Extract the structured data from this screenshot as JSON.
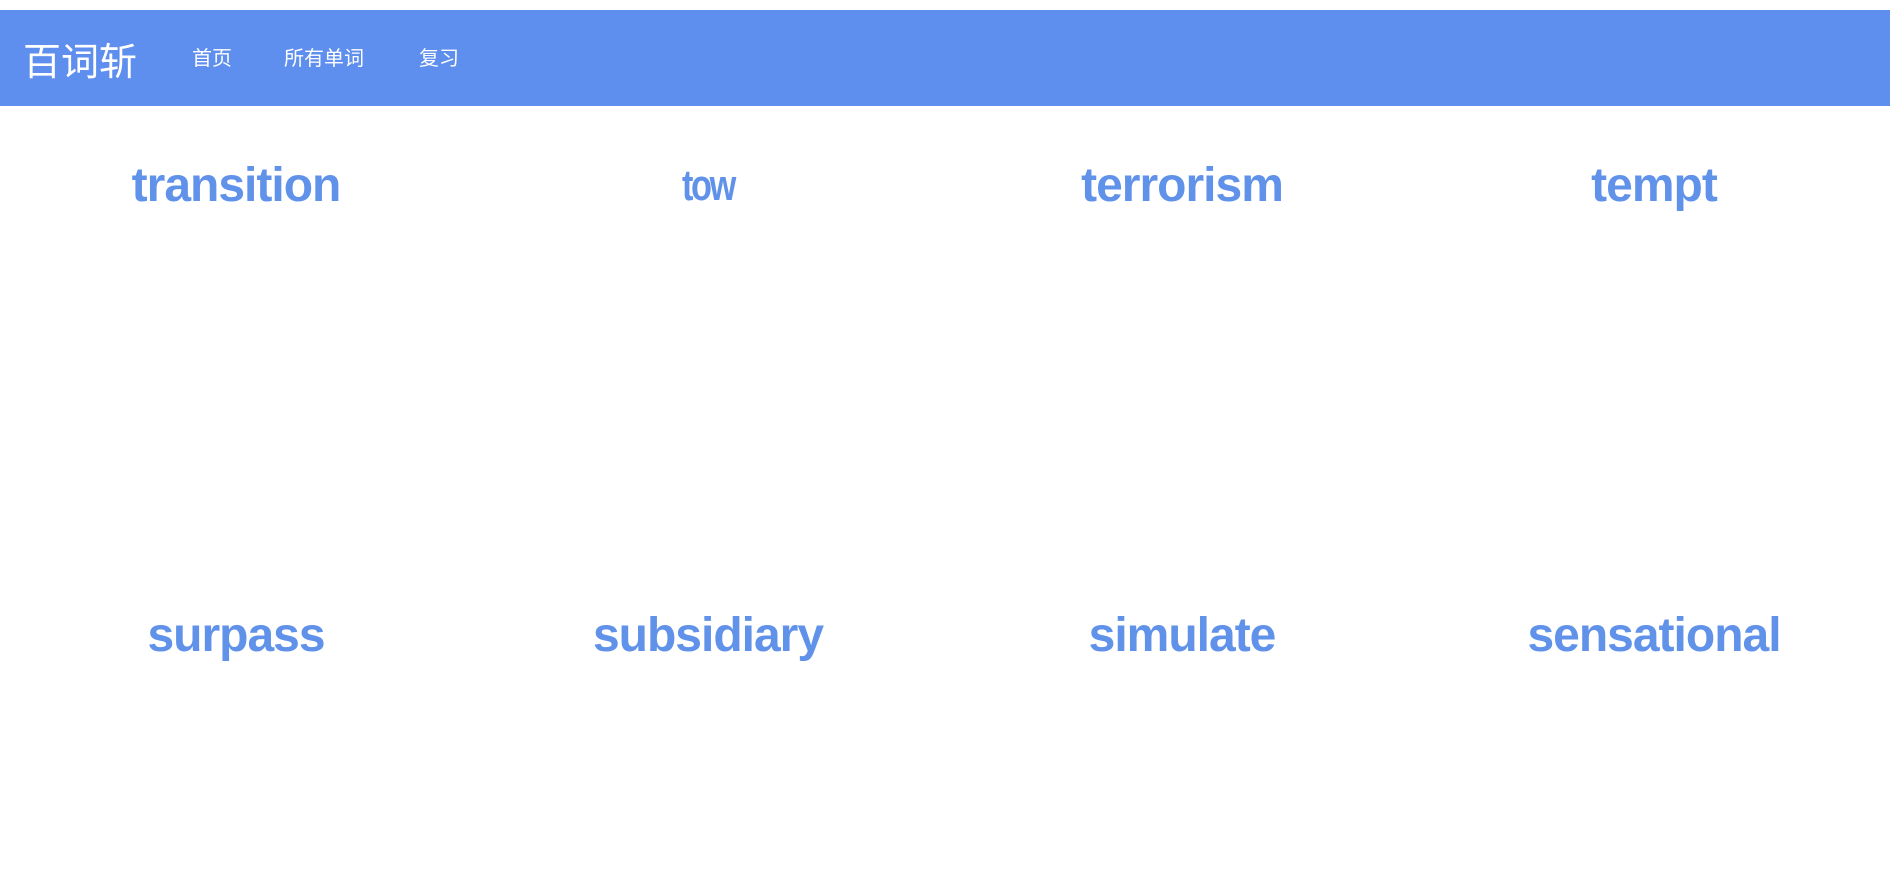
{
  "header": {
    "brand": "百词斩",
    "nav": [
      {
        "label": "首页"
      },
      {
        "label": "所有单词"
      },
      {
        "label": "复习"
      }
    ],
    "background_color": "#5e8fee"
  },
  "words": [
    "transition",
    "tow",
    "terrorism",
    "tempt",
    "surpass",
    "subsidiary",
    "simulate",
    "sensational"
  ],
  "word_color": "#6192ea"
}
